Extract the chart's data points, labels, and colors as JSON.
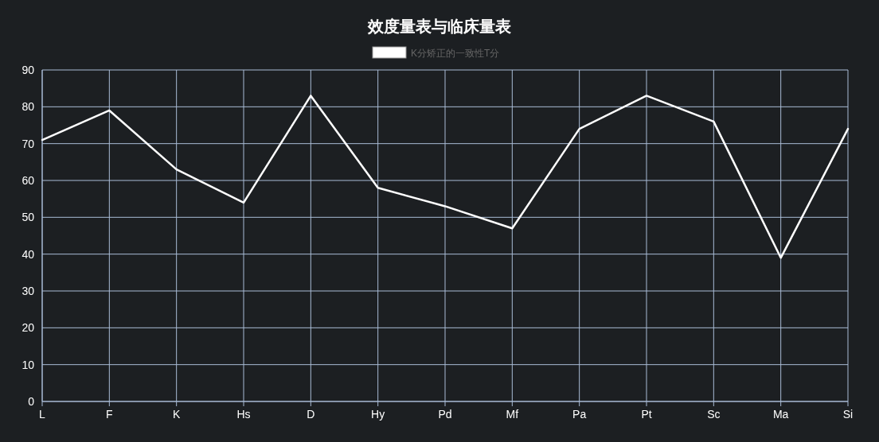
{
  "chart_data": {
    "type": "line",
    "title": "效度量表与临床量表",
    "categories": [
      "L",
      "F",
      "K",
      "Hs",
      "D",
      "Hy",
      "Pd",
      "Mf",
      "Pa",
      "Pt",
      "Sc",
      "Ma",
      "Si"
    ],
    "series": [
      {
        "name": "K分矫正的一致性T分",
        "color": "#ffffff",
        "values": [
          71,
          79,
          63,
          54,
          83,
          58,
          53,
          47,
          74,
          83,
          76,
          39,
          74
        ]
      }
    ],
    "ylim": [
      0,
      90
    ],
    "yticks": [
      0,
      10,
      20,
      30,
      40,
      50,
      60,
      70,
      80,
      90
    ],
    "grid": true,
    "legend": "top"
  }
}
